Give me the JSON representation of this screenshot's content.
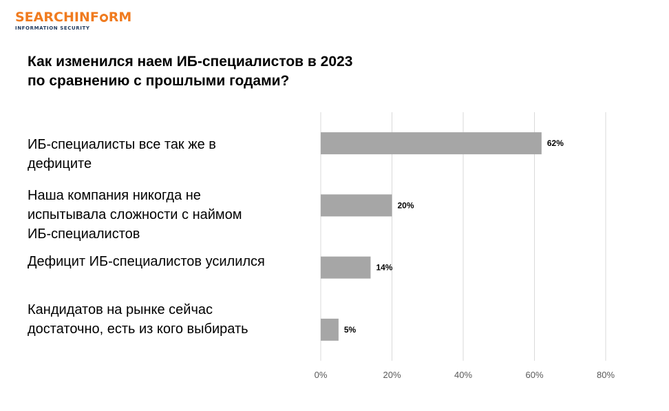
{
  "logo": {
    "part1": "SEARCHINF",
    "part2": "RM",
    "subtitle": "INFORMATION SECURITY"
  },
  "title": [
    "Как изменился наем ИБ-специалистов в 2023",
    "по сравнению с прошлыми годами?"
  ],
  "chart_data": {
    "type": "bar",
    "orientation": "horizontal",
    "title": "Как изменился наем ИБ-специалистов в 2023 по сравнению с прошлыми годами?",
    "categories": [
      [
        "ИБ-специалисты все так же в",
        "дефиците"
      ],
      [
        "Наша компания никогда не",
        "испытывала сложности с наймом",
        "ИБ-специалистов"
      ],
      [
        "Дефицит ИБ-специалистов усилился"
      ],
      [
        "Кандидатов на рынке сейчас",
        "достаточно, есть из кого выбирать"
      ]
    ],
    "values": [
      62,
      20,
      14,
      5
    ],
    "data_labels": [
      "62%",
      "20%",
      "14%",
      "5%"
    ],
    "xlim": [
      0,
      80
    ],
    "xticks": [
      0,
      20,
      40,
      60,
      80
    ],
    "xtick_labels": [
      "0%",
      "20%",
      "40%",
      "60%",
      "80%"
    ],
    "grid": "vertical",
    "bar_color": "#a6a6a6",
    "grid_color": "#d9d9d9"
  }
}
